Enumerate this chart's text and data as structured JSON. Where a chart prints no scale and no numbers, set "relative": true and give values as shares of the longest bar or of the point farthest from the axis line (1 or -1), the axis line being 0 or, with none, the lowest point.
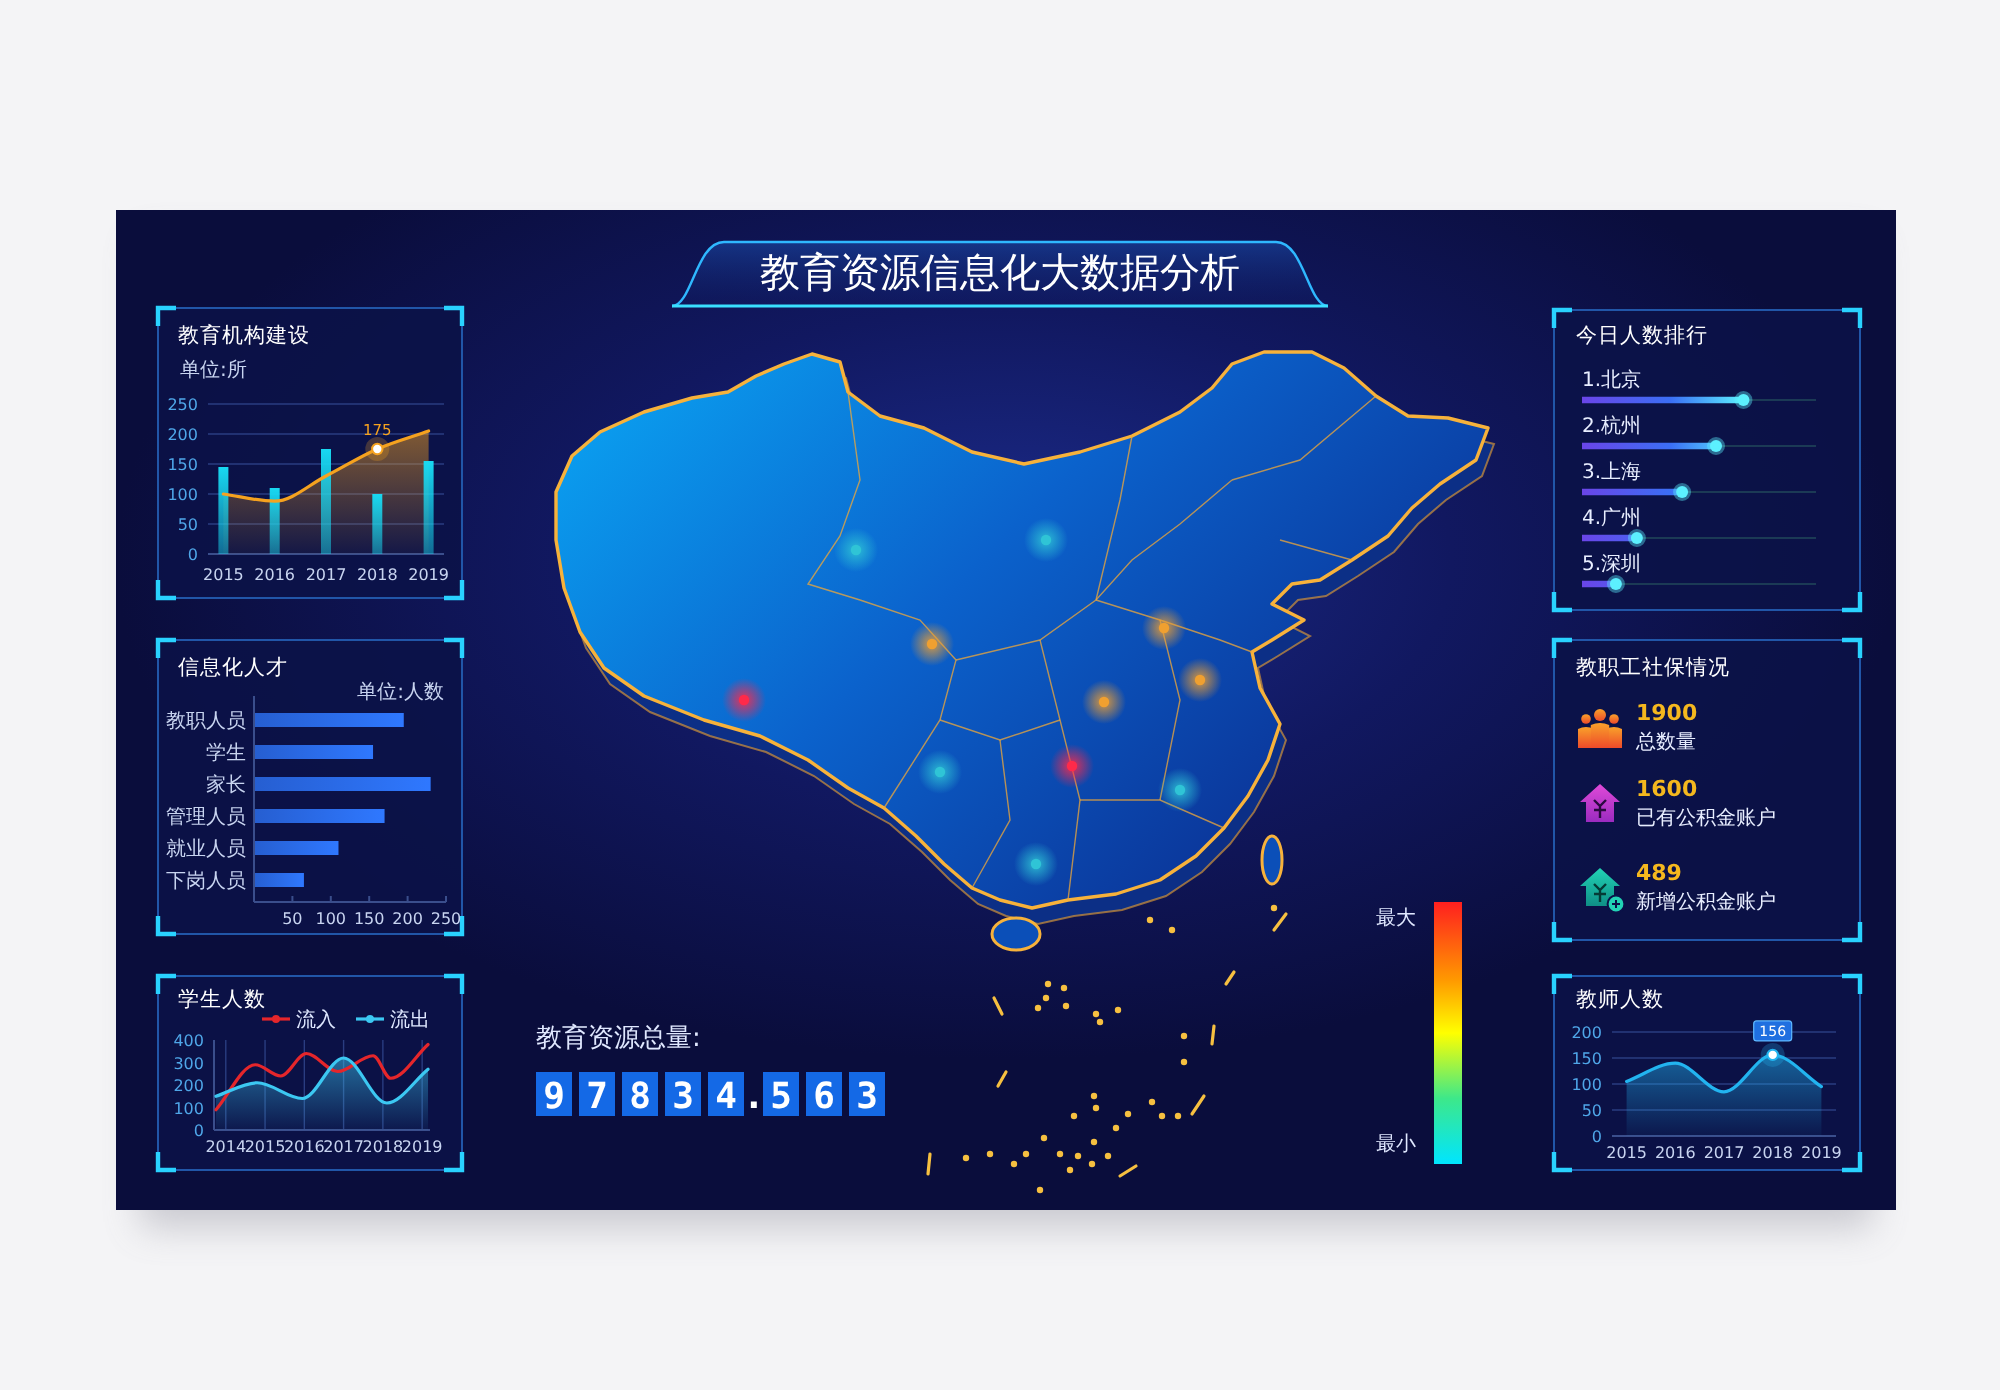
{
  "chart_data": [
    {
      "type": "other",
      "title": "教育资源信息化大数据分析",
      "annotations": [
        "最大",
        "最小"
      ]
    },
    {
      "type": "bar",
      "title": "教育机构建设",
      "ylabel": "单位:所",
      "categories": [
        "2015",
        "2016",
        "2017",
        "2018",
        "2019"
      ],
      "series": [
        {
          "type": "bar",
          "color": "#18d9f2",
          "values": [
            145,
            110,
            175,
            100,
            155
          ]
        },
        {
          "type": "area",
          "color": "#f5a21f",
          "values": [
            100,
            88,
            130,
            175,
            205
          ],
          "value_labels": [
            null,
            null,
            null,
            "175",
            null
          ]
        }
      ],
      "ylim": [
        0,
        250
      ],
      "yticks": [
        0,
        50,
        100,
        150,
        200,
        250
      ],
      "grid": "y"
    },
    {
      "type": "lollipop",
      "title": "今日人数排行",
      "orientation": "horizontal",
      "relative": true,
      "grid": "y",
      "categories": [
        "1.北京",
        "2.杭州",
        "3.上海",
        "4.广州",
        "5.深圳"
      ],
      "values": [
        1,
        0.83,
        0.62,
        0.34,
        0.21
      ],
      "color": "#5cf0ff"
    },
    {
      "type": "bar",
      "title": "信息化人才",
      "xlabel": "单位:人数",
      "orientation": "horizontal",
      "categories": [
        "教职人员",
        "学生",
        "家长",
        "管理人员",
        "就业人员",
        "下岗人员"
      ],
      "values": [
        195,
        155,
        230,
        170,
        110,
        65
      ],
      "color": "#2f78ff",
      "xlim": [
        0,
        250
      ],
      "xticks": [
        50,
        100,
        150,
        200,
        250
      ]
    },
    {
      "type": "other",
      "title": "教职工社保情况",
      "categories": [
        "总数量",
        "已有公积金账户",
        "新增公积金账户"
      ],
      "values": [
        1900,
        1600,
        489
      ],
      "data_labels": true
    },
    {
      "type": "line",
      "title": "学生人数",
      "xlim": [
        2013.7,
        2019.2
      ],
      "xticks": [
        2014,
        2015,
        2016,
        2017,
        2018,
        2019
      ],
      "ylim": [
        0,
        400
      ],
      "yticks": [
        0,
        100,
        200,
        300,
        400
      ],
      "grid": "x",
      "legend": "top right",
      "series": [
        {
          "name": "流入",
          "type": "line",
          "color": "#e5262b",
          "x": [
            2013.75,
            2014.75,
            2015.4,
            2016.05,
            2016.85,
            2017.75,
            2018.2,
            2019.15
          ],
          "values": [
            90,
            290,
            240,
            340,
            260,
            330,
            230,
            380
          ]
        },
        {
          "name": "流出",
          "type": "area",
          "color": "#3cc8f2",
          "x": [
            2013.75,
            2014.8,
            2015.95,
            2017.0,
            2018.1,
            2019.15
          ],
          "values": [
            150,
            210,
            140,
            320,
            120,
            270
          ]
        }
      ]
    },
    {
      "type": "other",
      "title": "教育资源总量:",
      "values": [
        97834.563
      ],
      "data_labels": true
    },
    {
      "type": "area",
      "title": "教师人数",
      "categories": [
        "2015",
        "2016",
        "2017",
        "2018",
        "2019"
      ],
      "values": [
        105,
        140,
        85,
        156,
        95
      ],
      "color": "#22b4f0",
      "value_labels": [
        null,
        null,
        null,
        "156",
        null
      ],
      "ylim": [
        0,
        200
      ],
      "yticks": [
        0,
        50,
        100,
        150,
        200
      ],
      "grid": "y"
    }
  ]
}
